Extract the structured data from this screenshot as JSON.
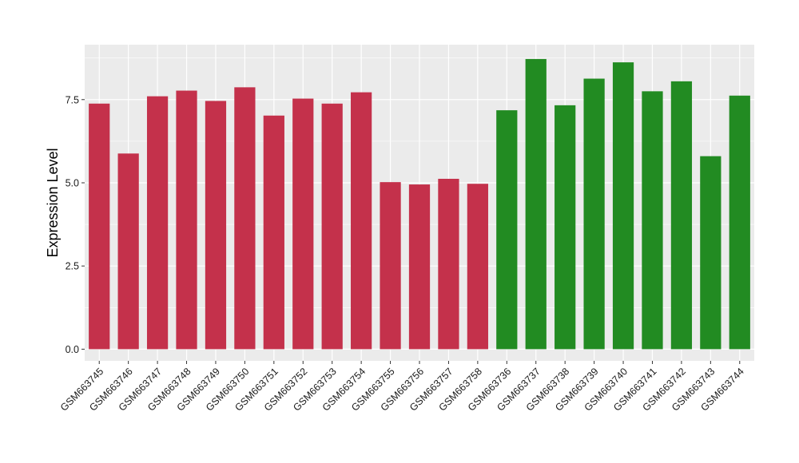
{
  "chart_data": {
    "type": "bar",
    "title": "",
    "xlabel": "",
    "ylabel": "Expression Level",
    "ylim": [
      -0.35,
      9.15
    ],
    "yticks": [
      0.0,
      2.5,
      5.0,
      7.5
    ],
    "ytick_labels": [
      "0.0",
      "2.5",
      "5.0",
      "7.5"
    ],
    "grid": true,
    "legend": "none",
    "colors": {
      "panel": "#ebebeb",
      "grid": "#ffffff",
      "group1": "#c4314b",
      "group2": "#228b22"
    },
    "categories": [
      "GSM663745",
      "GSM663746",
      "GSM663747",
      "GSM663748",
      "GSM663749",
      "GSM663750",
      "GSM663751",
      "GSM663752",
      "GSM663753",
      "GSM663754",
      "GSM663755",
      "GSM663756",
      "GSM663757",
      "GSM663758",
      "GSM663736",
      "GSM663737",
      "GSM663738",
      "GSM663739",
      "GSM663740",
      "GSM663741",
      "GSM663742",
      "GSM663743",
      "GSM663744"
    ],
    "values": [
      7.38,
      5.88,
      7.6,
      7.77,
      7.46,
      7.87,
      7.02,
      7.53,
      7.38,
      7.72,
      5.02,
      4.95,
      5.12,
      4.97,
      7.18,
      8.72,
      7.33,
      8.13,
      8.62,
      7.75,
      8.05,
      5.8,
      7.62
    ],
    "bar_colors": [
      "#c4314b",
      "#c4314b",
      "#c4314b",
      "#c4314b",
      "#c4314b",
      "#c4314b",
      "#c4314b",
      "#c4314b",
      "#c4314b",
      "#c4314b",
      "#c4314b",
      "#c4314b",
      "#c4314b",
      "#c4314b",
      "#228b22",
      "#228b22",
      "#228b22",
      "#228b22",
      "#228b22",
      "#228b22",
      "#228b22",
      "#228b22",
      "#228b22"
    ]
  }
}
